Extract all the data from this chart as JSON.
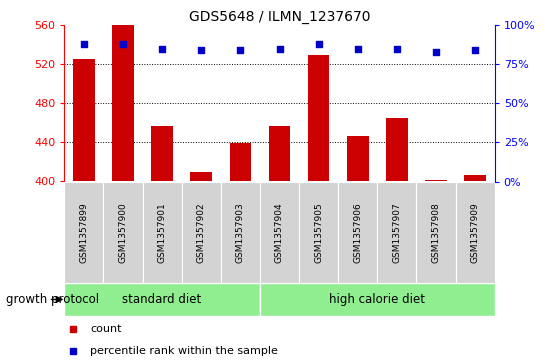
{
  "title": "GDS5648 / ILMN_1237670",
  "samples": [
    "GSM1357899",
    "GSM1357900",
    "GSM1357901",
    "GSM1357902",
    "GSM1357903",
    "GSM1357904",
    "GSM1357905",
    "GSM1357906",
    "GSM1357907",
    "GSM1357908",
    "GSM1357909"
  ],
  "bar_values": [
    526,
    560,
    457,
    410,
    439,
    457,
    530,
    447,
    465,
    402,
    407
  ],
  "percentile_values": [
    88,
    88,
    85,
    84,
    84,
    85,
    88,
    85,
    85,
    83,
    84
  ],
  "bar_color": "#cc0000",
  "dot_color": "#0000cc",
  "ylim_left": [
    400,
    560
  ],
  "ylim_right": [
    0,
    100
  ],
  "yticks_left": [
    400,
    440,
    480,
    520,
    560
  ],
  "yticks_right": [
    0,
    25,
    50,
    75,
    100
  ],
  "ytick_labels_right": [
    "0%",
    "25%",
    "50%",
    "75%",
    "100%"
  ],
  "grid_values": [
    440,
    480,
    520
  ],
  "groups": [
    {
      "label": "standard diet",
      "start": 0,
      "end": 5,
      "color": "#90ee90"
    },
    {
      "label": "high calorie diet",
      "start": 5,
      "end": 11,
      "color": "#90ee90"
    }
  ],
  "group_label_prefix": "growth protocol",
  "legend_items": [
    {
      "label": "count",
      "color": "#cc0000"
    },
    {
      "label": "percentile rank within the sample",
      "color": "#0000cc"
    }
  ],
  "bar_width": 0.55,
  "tick_label_bg": "#d3d3d3",
  "background_color": "#ffffff"
}
